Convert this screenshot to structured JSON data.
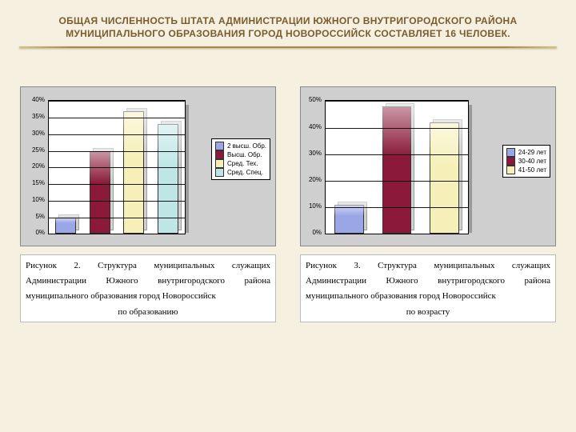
{
  "page": {
    "background": "#f5f0e0",
    "title": "ОБЩАЯ ЧИСЛЕННОСТЬ ШТАТА АДМИНИСТРАЦИИ ЮЖНОГО ВНУТРИГОРОДСКОГО РАЙОНА МУНИЦИПАЛЬНОГО ОБРАЗОВАНИЯ ГОРОД НОВОРОССИЙСК СОСТАВЛЯЕТ 16 ЧЕЛОВЕК.",
    "title_color": "#7a5c2e",
    "title_fontsize": 12
  },
  "chart1": {
    "type": "bar",
    "plot_bg": "#ffffff",
    "panel_bg": "#cfcfcf",
    "ylim": [
      0,
      40
    ],
    "ytick_step": 5,
    "yticks": [
      "0%",
      "5%",
      "10%",
      "15%",
      "20%",
      "25%",
      "30%",
      "35%",
      "40%"
    ],
    "series": [
      {
        "label": "2 высш. Обр.",
        "value": 5,
        "color": "#9aa6e6"
      },
      {
        "label": "Высш. Обр.",
        "value": 25,
        "color": "#8b1a3a"
      },
      {
        "label": "Сред. Тех.",
        "value": 37,
        "color": "#f6f0b8"
      },
      {
        "label": "Сред. Спец.",
        "value": 33,
        "color": "#bfe6e6"
      }
    ],
    "bar_border": "#333333",
    "caption_main": "Рисунок 2. Структура муниципальных служащих Администрации Южного внутригородского района муниципального образования город Новороссийск",
    "caption_sub": "по образованию"
  },
  "chart2": {
    "type": "bar",
    "plot_bg": "#ffffff",
    "panel_bg": "#cfcfcf",
    "ylim": [
      0,
      50
    ],
    "ytick_step": 10,
    "yticks": [
      "0%",
      "10%",
      "20%",
      "30%",
      "40%",
      "50%"
    ],
    "series": [
      {
        "label": "24-29 лет",
        "value": 11,
        "color": "#9aa6e6"
      },
      {
        "label": "30-40 лет",
        "value": 48,
        "color": "#8b1a3a"
      },
      {
        "label": "41-50 лет",
        "value": 42,
        "color": "#f6f0b8"
      }
    ],
    "bar_border": "#333333",
    "caption_main": "Рисунок 3. Структура муниципальных служащих  Администрации Южного внутригородского района муниципального образования город Новороссийск",
    "caption_sub": "по возрасту"
  }
}
